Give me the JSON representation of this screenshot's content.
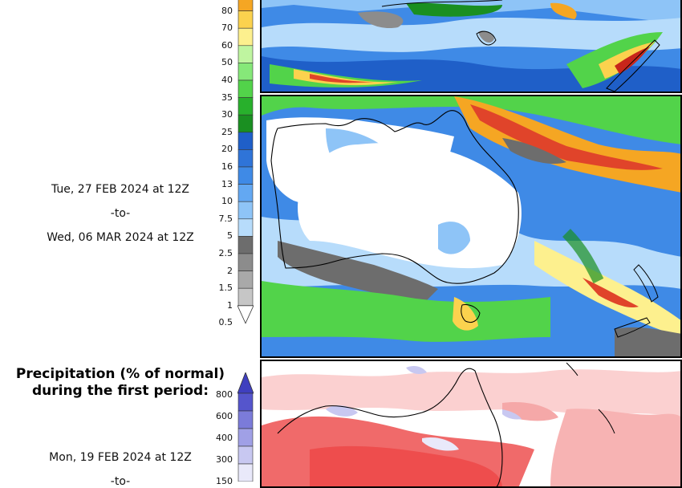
{
  "left_column": {
    "period2": {
      "from": "Tue, 27 FEB 2024 at 12Z",
      "sep": "-to-",
      "to": "Wed, 06 MAR 2024 at 12Z"
    },
    "period1_title_line1": "Precipitation (% of normal)",
    "period1_title_line2": "during the first period:",
    "period1": {
      "from": "Mon, 19 FEB 2024 at 12Z",
      "sep": "-to-"
    }
  },
  "precip_legend": {
    "ticks": [
      "80",
      "70",
      "60",
      "50",
      "40",
      "35",
      "30",
      "25",
      "20",
      "16",
      "13",
      "10",
      "7.5",
      "5",
      "2.5",
      "2",
      "1.5",
      "1",
      "0.5"
    ],
    "colors": [
      "#f5a623",
      "#fbd24e",
      "#fdf08e",
      "#bff5a0",
      "#86e879",
      "#52d34a",
      "#28b02c",
      "#1a8f21",
      "#1f5fc8",
      "#2f74d8",
      "#3f8ae6",
      "#63a8f2",
      "#8ec4f7",
      "#b7dcfb",
      "#6d6d6d",
      "#8c8c8c",
      "#a9a9a9",
      "#c6c6c6",
      "#ffffff"
    ]
  },
  "normal_legend": {
    "ticks": [
      "800",
      "600",
      "400",
      "300",
      "150"
    ],
    "colors": [
      "#5555cc",
      "#7b7bd9",
      "#a0a0e6",
      "#c8c8f1",
      "#e9e9fa"
    ]
  },
  "maps": {
    "top_panel": "precipitation-map-week1-top",
    "main_panel": "precipitation-map-week2",
    "bottom_panel": "percent-of-normal-map"
  }
}
